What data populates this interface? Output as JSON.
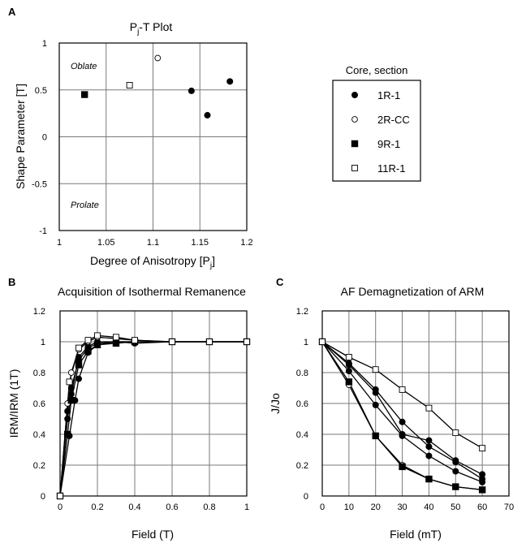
{
  "chart_data": [
    {
      "panel": "A",
      "type": "scatter",
      "title_main": "P",
      "title_sub": "j",
      "title_rest": "-T Plot",
      "xlabel_main": "Degree of Anisotropy [P",
      "xlabel_sub": "j",
      "xlabel_end": "]",
      "ylabel": "Shape Parameter [T]",
      "xlim": [
        1,
        1.2
      ],
      "ylim": [
        -1,
        1
      ],
      "xticks": [
        "1",
        "1.05",
        "1.1",
        "1.15",
        "1.2"
      ],
      "yticks": [
        "-1",
        "-0.5",
        "0",
        "0.5",
        "1"
      ],
      "region_labels": {
        "oblate": "Oblate",
        "prolate": "Prolate"
      },
      "series": [
        {
          "name": "1R-1",
          "marker": "filled-circle",
          "points": [
            [
              1.141,
              0.49
            ],
            [
              1.158,
              0.23
            ],
            [
              1.182,
              0.59
            ]
          ]
        },
        {
          "name": "2R-CC",
          "marker": "open-circle",
          "points": [
            [
              1.105,
              0.84
            ]
          ]
        },
        {
          "name": "9R-1",
          "marker": "filled-square",
          "points": [
            [
              1.027,
              0.45
            ]
          ]
        },
        {
          "name": "11R-1",
          "marker": "open-square",
          "points": [
            [
              1.075,
              0.55
            ]
          ]
        }
      ]
    },
    {
      "panel": "B",
      "type": "line",
      "title": "Acquisition of Isothermal Remanence",
      "xlabel": "Field (T)",
      "ylabel": "IRM/IRM (1T)",
      "xlim": [
        0,
        1
      ],
      "ylim": [
        0,
        1.2
      ],
      "xticks": [
        "0",
        "0.2",
        "0.4",
        "0.6",
        "0.8",
        "1"
      ],
      "yticks": [
        "0",
        "0.2",
        "0.4",
        "0.6",
        "0.8",
        "1",
        "1.2"
      ],
      "grid": true,
      "series": [
        {
          "name": "1R-1 a",
          "marker": "filled-circle",
          "x": [
            0,
            0.05,
            0.08,
            0.1,
            0.15,
            0.2,
            0.3,
            0.4,
            0.6,
            0.8,
            1
          ],
          "y": [
            0,
            0.39,
            0.62,
            0.76,
            0.93,
            0.98,
            1.0,
            1.0,
            1.0,
            1.0,
            1.0
          ]
        },
        {
          "name": "1R-1 b",
          "marker": "filled-circle",
          "x": [
            0,
            0.04,
            0.06,
            0.1,
            0.15,
            0.2,
            0.3,
            0.4,
            0.6,
            0.8,
            1
          ],
          "y": [
            0,
            0.5,
            0.66,
            0.9,
            0.97,
            1.0,
            1.0,
            1.0,
            1.0,
            1.0,
            1.0
          ]
        },
        {
          "name": "1R-1 c",
          "marker": "filled-circle",
          "x": [
            0,
            0.04,
            0.06,
            0.1,
            0.15,
            0.2,
            0.3,
            0.4,
            0.6,
            0.8,
            1
          ],
          "y": [
            0,
            0.55,
            0.7,
            0.88,
            0.96,
            0.99,
            1.0,
            0.99,
            1.0,
            1.0,
            1.0
          ]
        },
        {
          "name": "2R-CC",
          "marker": "open-circle",
          "x": [
            0,
            0.04,
            0.06,
            0.1,
            0.15,
            0.2,
            0.3,
            0.4,
            0.6,
            0.8,
            1
          ],
          "y": [
            0,
            0.6,
            0.8,
            0.95,
            1.0,
            1.03,
            1.02,
            1.01,
            1.0,
            1.0,
            1.0
          ]
        },
        {
          "name": "9R-1",
          "marker": "filled-square",
          "x": [
            0,
            0.04,
            0.06,
            0.1,
            0.15,
            0.2,
            0.3,
            0.4,
            0.6,
            0.8,
            1
          ],
          "y": [
            0,
            0.4,
            0.62,
            0.85,
            0.94,
            0.98,
            0.99,
            1.0,
            1.0,
            1.0,
            1.0
          ]
        },
        {
          "name": "11R-1",
          "marker": "open-square",
          "x": [
            0,
            0.05,
            0.1,
            0.15,
            0.2,
            0.3,
            0.4,
            0.6,
            0.8,
            1
          ],
          "y": [
            0,
            0.74,
            0.96,
            1.01,
            1.04,
            1.03,
            1.01,
            1.0,
            1.0,
            1.0
          ]
        }
      ]
    },
    {
      "panel": "C",
      "type": "line",
      "title": "AF Demagnetization of ARM",
      "xlabel": "Field (mT)",
      "ylabel": "J/Jo",
      "xlim": [
        0,
        70
      ],
      "ylim": [
        0,
        1.2
      ],
      "xticks": [
        "0",
        "10",
        "20",
        "30",
        "40",
        "50",
        "60",
        "70"
      ],
      "yticks": [
        "0",
        "0.2",
        "0.4",
        "0.6",
        "0.8",
        "1",
        "1.2"
      ],
      "grid": true,
      "series": [
        {
          "name": "1R-1 a",
          "marker": "filled-circle",
          "x": [
            0,
            10,
            20,
            30,
            40,
            50,
            60
          ],
          "y": [
            1,
            0.81,
            0.59,
            0.39,
            0.26,
            0.16,
            0.09
          ]
        },
        {
          "name": "1R-1 b",
          "marker": "filled-circle",
          "x": [
            0,
            10,
            20,
            30,
            40,
            50,
            60
          ],
          "y": [
            1,
            0.86,
            0.69,
            0.48,
            0.32,
            0.22,
            0.11
          ]
        },
        {
          "name": "1R-1 c",
          "marker": "filled-circle",
          "x": [
            0,
            10,
            20,
            30,
            40,
            50,
            60
          ],
          "y": [
            1,
            0.85,
            0.67,
            0.4,
            0.36,
            0.23,
            0.14
          ]
        },
        {
          "name": "2R-CC",
          "marker": "open-circle",
          "x": [
            0,
            10,
            20,
            30,
            40,
            50,
            60
          ],
          "y": [
            1,
            0.72,
            0.39,
            0.2,
            0.11,
            0.06,
            0.04
          ]
        },
        {
          "name": "9R-1",
          "marker": "filled-square",
          "x": [
            0,
            10,
            20,
            30,
            40,
            50,
            60
          ],
          "y": [
            1,
            0.74,
            0.39,
            0.19,
            0.11,
            0.06,
            0.04
          ]
        },
        {
          "name": "11R-1",
          "marker": "open-square",
          "x": [
            0,
            10,
            20,
            30,
            40,
            50,
            60
          ],
          "y": [
            1,
            0.9,
            0.82,
            0.69,
            0.57,
            0.41,
            0.31
          ]
        }
      ]
    }
  ],
  "legend": {
    "title": "Core, section",
    "items": [
      {
        "label": "1R-1",
        "marker": "filled-circle"
      },
      {
        "label": "2R-CC",
        "marker": "open-circle"
      },
      {
        "label": "9R-1",
        "marker": "filled-square"
      },
      {
        "label": "11R-1",
        "marker": "open-square"
      }
    ]
  }
}
